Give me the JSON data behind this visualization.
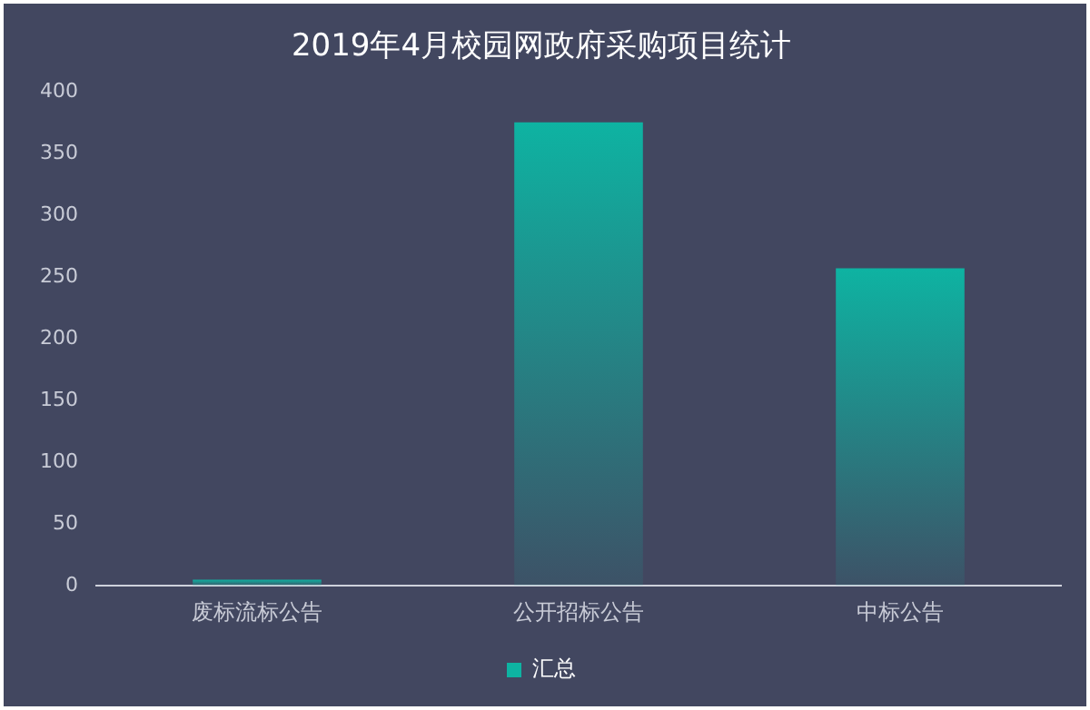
{
  "chart_data": {
    "type": "bar",
    "title": "2019年4月校园网政府采购项目统计",
    "categories": [
      "废标流标公告",
      "公开招标公告",
      "中标公告"
    ],
    "series": [
      {
        "name": "汇总",
        "color": "#0eb3a2",
        "values": [
          5,
          375,
          257
        ]
      }
    ],
    "ylim": [
      0,
      400
    ],
    "yticks": [
      0,
      50,
      100,
      150,
      200,
      250,
      300,
      350,
      400
    ],
    "grid": false,
    "legend": "bottom"
  }
}
